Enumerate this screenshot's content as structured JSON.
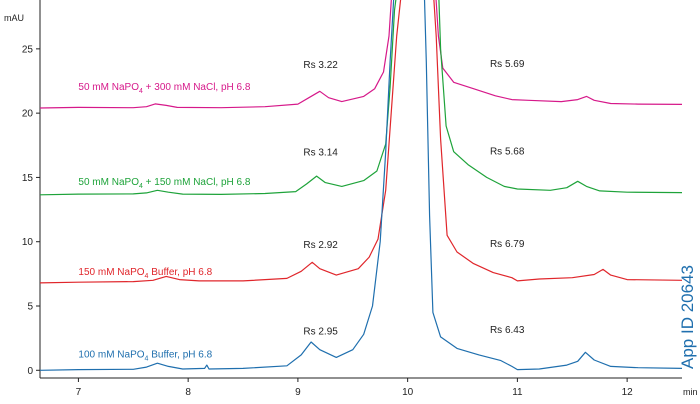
{
  "chart_data": {
    "type": "line",
    "y_unit": "mAU",
    "x_unit": "min",
    "xlim": [
      6.65,
      12.5
    ],
    "ylim": [
      -0.6,
      28.8
    ],
    "x_ticks": [
      7,
      8,
      9,
      10,
      11,
      12
    ],
    "y_ticks": [
      0,
      5,
      10,
      15,
      20,
      25
    ],
    "grid": false,
    "app_id": "App ID 20643",
    "app_id_color": "#1f6fae",
    "series": [
      {
        "name_main": "50 mM NaPO",
        "name_sub": "4",
        "name_rest": " + 300 mM  NaCl, pH 6.8",
        "color": "#d6198a",
        "label_at": [
          7.0,
          21.8
        ],
        "points": [
          [
            6.65,
            20.4
          ],
          [
            7.0,
            20.45
          ],
          [
            7.5,
            20.42
          ],
          [
            7.62,
            20.5
          ],
          [
            7.7,
            20.72
          ],
          [
            7.8,
            20.6
          ],
          [
            7.9,
            20.45
          ],
          [
            8.3,
            20.42
          ],
          [
            8.7,
            20.5
          ],
          [
            9.0,
            20.7
          ],
          [
            9.1,
            21.2
          ],
          [
            9.2,
            21.7
          ],
          [
            9.28,
            21.2
          ],
          [
            9.4,
            20.9
          ],
          [
            9.6,
            21.3
          ],
          [
            9.7,
            21.9
          ],
          [
            9.78,
            23.2
          ],
          [
            9.83,
            26.0
          ],
          [
            9.86,
            30.0
          ],
          [
            10.25,
            30.0
          ],
          [
            10.28,
            26.0
          ],
          [
            10.32,
            23.5
          ],
          [
            10.42,
            22.4
          ],
          [
            10.6,
            21.9
          ],
          [
            10.8,
            21.35
          ],
          [
            10.95,
            21.05
          ],
          [
            11.1,
            21.0
          ],
          [
            11.4,
            20.9
          ],
          [
            11.55,
            21.05
          ],
          [
            11.63,
            21.3
          ],
          [
            11.7,
            21.0
          ],
          [
            11.85,
            20.75
          ],
          [
            12.1,
            20.7
          ],
          [
            12.5,
            20.68
          ]
        ],
        "rs_left": "Rs 3.22",
        "rs_left_at": [
          9.05,
          23.5
        ],
        "rs_right": "Rs 5.69",
        "rs_right_at": [
          10.75,
          23.6
        ]
      },
      {
        "name_main": "50 mM NaPO",
        "name_sub": "4",
        "name_rest": " + 150 mM NaCl, pH 6.8",
        "color": "#1ea33a",
        "label_at": [
          7.0,
          14.4
        ],
        "points": [
          [
            6.65,
            13.65
          ],
          [
            7.0,
            13.7
          ],
          [
            7.5,
            13.72
          ],
          [
            7.62,
            13.8
          ],
          [
            7.72,
            14.0
          ],
          [
            7.82,
            13.85
          ],
          [
            7.95,
            13.7
          ],
          [
            8.3,
            13.68
          ],
          [
            8.7,
            13.75
          ],
          [
            8.98,
            13.9
          ],
          [
            9.08,
            14.5
          ],
          [
            9.17,
            15.1
          ],
          [
            9.25,
            14.6
          ],
          [
            9.4,
            14.3
          ],
          [
            9.6,
            14.75
          ],
          [
            9.72,
            15.5
          ],
          [
            9.8,
            17.6
          ],
          [
            9.84,
            22.0
          ],
          [
            9.88,
            28.0
          ],
          [
            9.91,
            30.0
          ],
          [
            10.28,
            30.0
          ],
          [
            10.3,
            25.0
          ],
          [
            10.35,
            19.0
          ],
          [
            10.42,
            17.0
          ],
          [
            10.55,
            16.0
          ],
          [
            10.72,
            15.0
          ],
          [
            10.88,
            14.3
          ],
          [
            11.0,
            14.1
          ],
          [
            11.3,
            14.0
          ],
          [
            11.45,
            14.2
          ],
          [
            11.55,
            14.7
          ],
          [
            11.63,
            14.3
          ],
          [
            11.75,
            13.95
          ],
          [
            12.0,
            13.85
          ],
          [
            12.5,
            13.82
          ]
        ],
        "rs_left": "Rs 3.14",
        "rs_left_at": [
          9.05,
          16.7
        ],
        "rs_right": "Rs 5.68",
        "rs_right_at": [
          10.75,
          16.8
        ]
      },
      {
        "name_main": "150 mM NaPO",
        "name_sub": "4",
        "name_rest": " Buffer, pH 6.8",
        "color": "#e0262b",
        "label_at": [
          7.0,
          7.4
        ],
        "points": [
          [
            6.65,
            6.8
          ],
          [
            7.0,
            6.85
          ],
          [
            7.5,
            6.9
          ],
          [
            7.68,
            7.0
          ],
          [
            7.8,
            7.3
          ],
          [
            7.92,
            7.05
          ],
          [
            8.1,
            6.95
          ],
          [
            8.5,
            6.95
          ],
          [
            8.9,
            7.15
          ],
          [
            9.03,
            7.7
          ],
          [
            9.13,
            8.4
          ],
          [
            9.2,
            7.9
          ],
          [
            9.35,
            7.4
          ],
          [
            9.55,
            7.9
          ],
          [
            9.65,
            8.8
          ],
          [
            9.73,
            10.2
          ],
          [
            9.8,
            14.0
          ],
          [
            9.85,
            20.0
          ],
          [
            9.9,
            26.0
          ],
          [
            9.95,
            30.0
          ],
          [
            10.23,
            30.0
          ],
          [
            10.26,
            26.0
          ],
          [
            10.3,
            18.0
          ],
          [
            10.36,
            10.5
          ],
          [
            10.45,
            9.2
          ],
          [
            10.6,
            8.3
          ],
          [
            10.78,
            7.6
          ],
          [
            10.95,
            7.2
          ],
          [
            11.0,
            6.95
          ],
          [
            11.2,
            7.1
          ],
          [
            11.5,
            7.2
          ],
          [
            11.7,
            7.45
          ],
          [
            11.78,
            7.85
          ],
          [
            11.85,
            7.4
          ],
          [
            12.0,
            7.05
          ],
          [
            12.5,
            7.0
          ]
        ],
        "rs_left": "Rs 2.92",
        "rs_left_at": [
          9.05,
          9.5
        ],
        "rs_right": "Rs 6.79",
        "rs_right_at": [
          10.75,
          9.6
        ]
      },
      {
        "name_main": "100 mM NaPO",
        "name_sub": "4",
        "name_rest": " Buffer, pH 6.8",
        "color": "#1f6fae",
        "label_at": [
          7.0,
          1.0
        ],
        "points": [
          [
            6.65,
            0.0
          ],
          [
            7.0,
            0.05
          ],
          [
            7.5,
            0.08
          ],
          [
            7.62,
            0.25
          ],
          [
            7.72,
            0.55
          ],
          [
            7.82,
            0.3
          ],
          [
            7.95,
            0.1
          ],
          [
            8.15,
            0.15
          ],
          [
            8.17,
            0.4
          ],
          [
            8.19,
            0.1
          ],
          [
            8.5,
            0.15
          ],
          [
            8.9,
            0.35
          ],
          [
            9.03,
            1.2
          ],
          [
            9.12,
            2.2
          ],
          [
            9.2,
            1.6
          ],
          [
            9.35,
            1.0
          ],
          [
            9.5,
            1.6
          ],
          [
            9.6,
            2.8
          ],
          [
            9.68,
            5.0
          ],
          [
            9.75,
            10.0
          ],
          [
            9.8,
            17.0
          ],
          [
            9.84,
            24.0
          ],
          [
            9.88,
            30.0
          ],
          [
            10.15,
            30.0
          ],
          [
            10.17,
            24.0
          ],
          [
            10.2,
            12.0
          ],
          [
            10.23,
            4.5
          ],
          [
            10.3,
            2.6
          ],
          [
            10.45,
            1.7
          ],
          [
            10.65,
            1.2
          ],
          [
            10.85,
            0.75
          ],
          [
            10.95,
            0.3
          ],
          [
            11.0,
            0.05
          ],
          [
            11.2,
            0.1
          ],
          [
            11.45,
            0.4
          ],
          [
            11.55,
            0.7
          ],
          [
            11.62,
            1.4
          ],
          [
            11.7,
            0.8
          ],
          [
            11.85,
            0.3
          ],
          [
            12.1,
            0.2
          ],
          [
            12.5,
            0.15
          ]
        ],
        "rs_left": "Rs 2.95",
        "rs_left_at": [
          9.05,
          2.8
        ],
        "rs_right": "Rs 6.43",
        "rs_right_at": [
          10.75,
          2.9
        ]
      }
    ]
  }
}
